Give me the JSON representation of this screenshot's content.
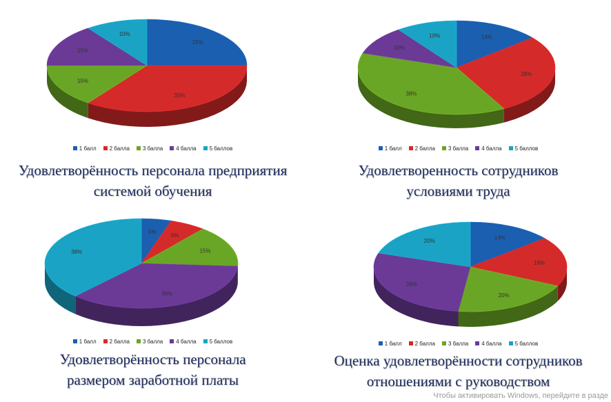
{
  "legend_labels": [
    "1 балл",
    "2 балла",
    "3 балла",
    "4 балла",
    "5 баллов"
  ],
  "colors": [
    "#1b5fb0",
    "#d42a2a",
    "#6aa625",
    "#6b3a96",
    "#1aa3c4"
  ],
  "chart_data": [
    {
      "type": "pie",
      "categories": [
        "1 балл",
        "2 балла",
        "3 балла",
        "4 балла",
        "5 баллов"
      ],
      "values": [
        25,
        35,
        15,
        15,
        10
      ],
      "labels": [
        "25%",
        "35%",
        "15%",
        "15%",
        "10%"
      ],
      "title_lines": [
        "Удовлетворённость персонала предприятия",
        "системой обучения"
      ]
    },
    {
      "type": "pie",
      "categories": [
        "1 балл",
        "2 балла",
        "3 балла",
        "4 балла",
        "5 баллов"
      ],
      "values": [
        14,
        28,
        38,
        10,
        10
      ],
      "labels": [
        "14%",
        "28%",
        "38%",
        "10%",
        "10%"
      ],
      "title_lines": [
        "Удовлетворенность сотрудников",
        "условиями труда"
      ]
    },
    {
      "type": "pie",
      "categories": [
        "1 балл",
        "2 балла",
        "3 балла",
        "4 балла",
        "5 баллов"
      ],
      "values": [
        5,
        6,
        15,
        36,
        38
      ],
      "labels": [
        "5%",
        "6%",
        "15%",
        "36%",
        "38%"
      ],
      "title_lines": [
        "Удовлетворённость персонала",
        "размером заработной платы"
      ]
    },
    {
      "type": "pie",
      "categories": [
        "1 балл",
        "2 балла",
        "3 балла",
        "4 балла",
        "5 баллов"
      ],
      "values": [
        14,
        18,
        20,
        28,
        20
      ],
      "labels": [
        "14%",
        "18%",
        "20%",
        "28%",
        "20%"
      ],
      "title_lines": [
        "Оценка удовлетворённости сотрудников",
        "отношениями с руководством"
      ]
    }
  ],
  "watermark": "Чтобы активировать Windows, перейдите в разде"
}
